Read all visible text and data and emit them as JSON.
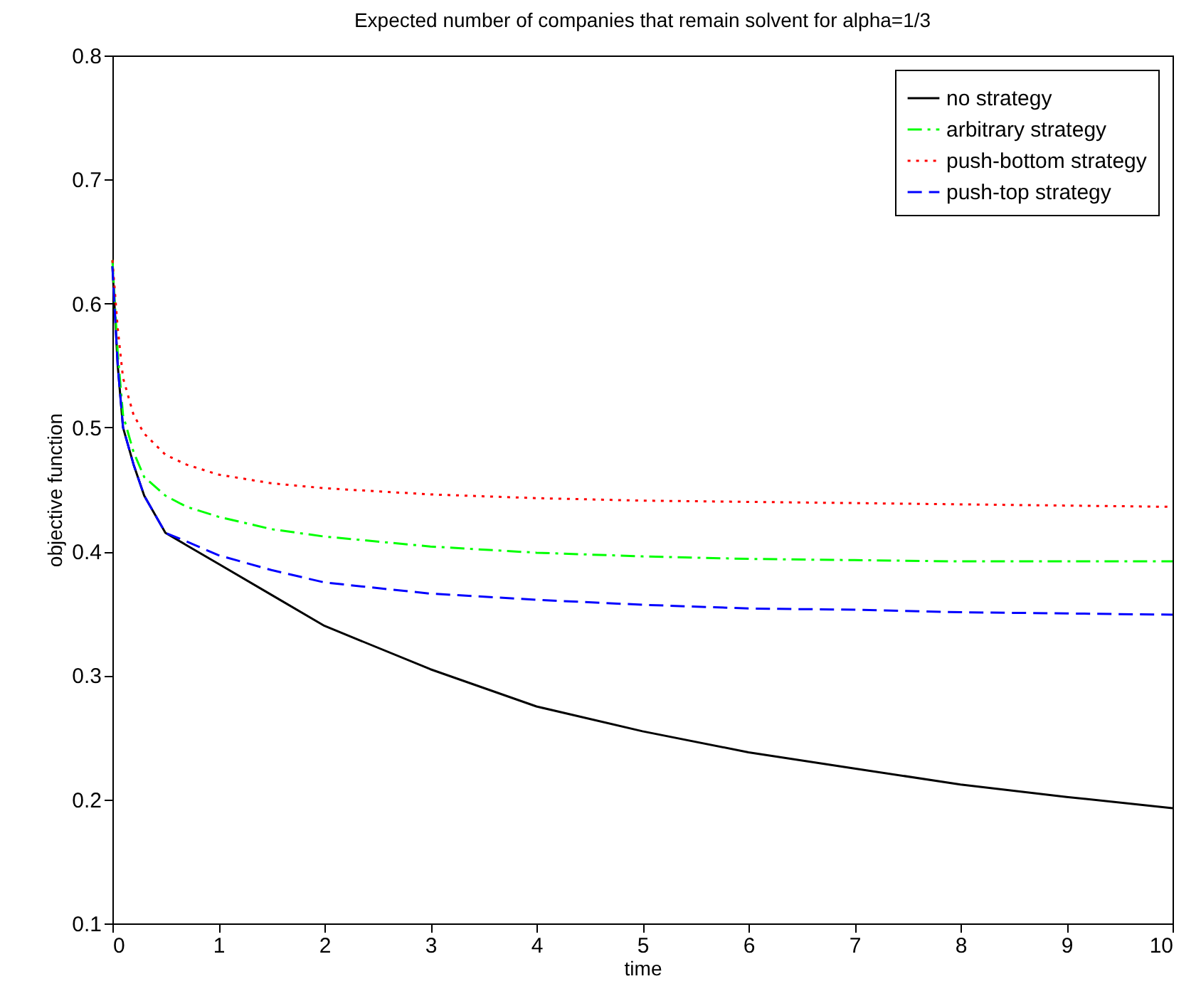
{
  "chart_data": {
    "type": "line",
    "title": "Expected number of companies that remain solvent for alpha=1/3",
    "xlabel": "time",
    "ylabel": "objective function",
    "x": [
      0,
      0.05,
      0.1,
      0.2,
      0.3,
      0.5,
      0.7,
      1,
      1.5,
      2,
      3,
      4,
      5,
      6,
      7,
      8,
      9,
      10
    ],
    "series": [
      {
        "name": "no strategy",
        "color": "#000000",
        "line_style": "solid",
        "values": [
          0.63,
          0.55,
          0.5,
          0.47,
          0.445,
          0.415,
          0.405,
          0.39,
          0.365,
          0.34,
          0.305,
          0.275,
          0.255,
          0.238,
          0.225,
          0.212,
          0.202,
          0.193
        ]
      },
      {
        "name": "arbitrary strategy",
        "color": "#00ff00",
        "line_style": "dashdot",
        "values": [
          0.635,
          0.56,
          0.51,
          0.48,
          0.46,
          0.445,
          0.436,
          0.428,
          0.418,
          0.412,
          0.404,
          0.399,
          0.396,
          0.394,
          0.393,
          0.392,
          0.392,
          0.392
        ]
      },
      {
        "name": "push-bottom strategy",
        "color": "#ff0000",
        "line_style": "dotted",
        "values": [
          0.635,
          0.58,
          0.54,
          0.51,
          0.495,
          0.478,
          0.47,
          0.462,
          0.455,
          0.451,
          0.446,
          0.443,
          0.441,
          0.44,
          0.439,
          0.438,
          0.437,
          0.436
        ]
      },
      {
        "name": "push-top strategy",
        "color": "#0000ff",
        "line_style": "dashed",
        "values": [
          0.63,
          0.55,
          0.5,
          0.47,
          0.445,
          0.415,
          0.408,
          0.397,
          0.385,
          0.375,
          0.366,
          0.361,
          0.357,
          0.354,
          0.353,
          0.351,
          0.35,
          0.349
        ]
      }
    ],
    "xlim": [
      0,
      10
    ],
    "ylim": [
      0.1,
      0.8
    ],
    "xticks": [
      0,
      1,
      2,
      3,
      4,
      5,
      6,
      7,
      8,
      9,
      10
    ],
    "yticks": [
      0.1,
      0.2,
      0.3,
      0.4,
      0.5,
      0.6,
      0.7,
      0.8
    ],
    "grid": false,
    "legend": "top right"
  }
}
